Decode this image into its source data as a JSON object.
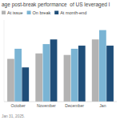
{
  "chart_data": {
    "type": "bar",
    "title": "age post-break performance  of US leveraged l",
    "subtitle": "Jan 31, 2025.",
    "categories": [
      "October",
      "November",
      "December",
      "Jan"
    ],
    "series": [
      {
        "name": "At issue",
        "color": "#b3b3b3",
        "values": [
          0.55,
          0.62,
          0.6,
          0.8
        ]
      },
      {
        "name": "On break",
        "color": "#7ab4d4",
        "values": [
          0.68,
          0.74,
          0.68,
          0.92
        ]
      },
      {
        "name": "At month-end",
        "color": "#1f4e79",
        "values": [
          0.44,
          0.8,
          0.72,
          0.72
        ]
      }
    ],
    "ylim": [
      0,
      1.05
    ],
    "tick_labels": "x",
    "legend": "top",
    "grid": false
  }
}
